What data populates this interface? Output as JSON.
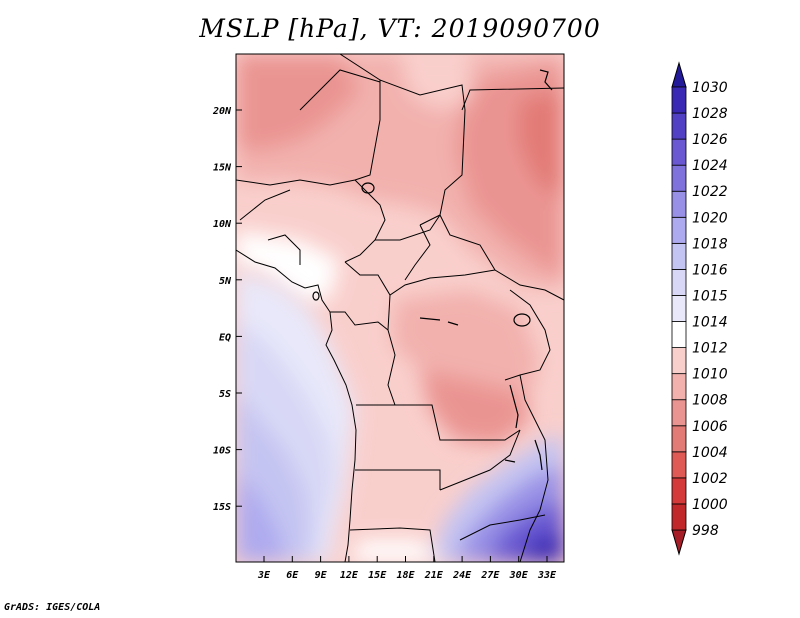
{
  "map": {
    "title": "MSLP [hPa], VT: 2019090700",
    "footer": "GrADS: IGES/COLA",
    "lat_labels": [
      "20N",
      "15N",
      "10N",
      "5N",
      "EQ",
      "5S",
      "10S",
      "15S"
    ],
    "lon_labels": [
      "3E",
      "6E",
      "9E",
      "12E",
      "15E",
      "18E",
      "21E",
      "24E",
      "27E",
      "30E",
      "33E"
    ]
  },
  "colorbar": {
    "labels": [
      "998",
      "1000",
      "1002",
      "1004",
      "1006",
      "1008",
      "1010",
      "1012",
      "1014",
      "1015",
      "1016",
      "1018",
      "1020",
      "1022",
      "1024",
      "1026",
      "1028",
      "1030"
    ],
    "colors": [
      "#a51e28",
      "#c0282a",
      "#d43a3a",
      "#e05a55",
      "#e27a76",
      "#ea9492",
      "#f2b1ad",
      "#f9cfcc",
      "#ffffff",
      "#e8e8fa",
      "#d8d8f6",
      "#c4c4f2",
      "#aeaaef",
      "#9890e6",
      "#7f72dc",
      "#6958d2",
      "#5240c4",
      "#3828b4",
      "#231a9a"
    ]
  },
  "colors": {
    "high_red": "#e27a76",
    "mid_red": "#f2b1ad",
    "light_red": "#f9cfcc",
    "neutral": "#ffffff",
    "light_blue": "#d8d8f6",
    "mid_blue": "#aeaaef",
    "deep_blue": "#5240c4"
  }
}
